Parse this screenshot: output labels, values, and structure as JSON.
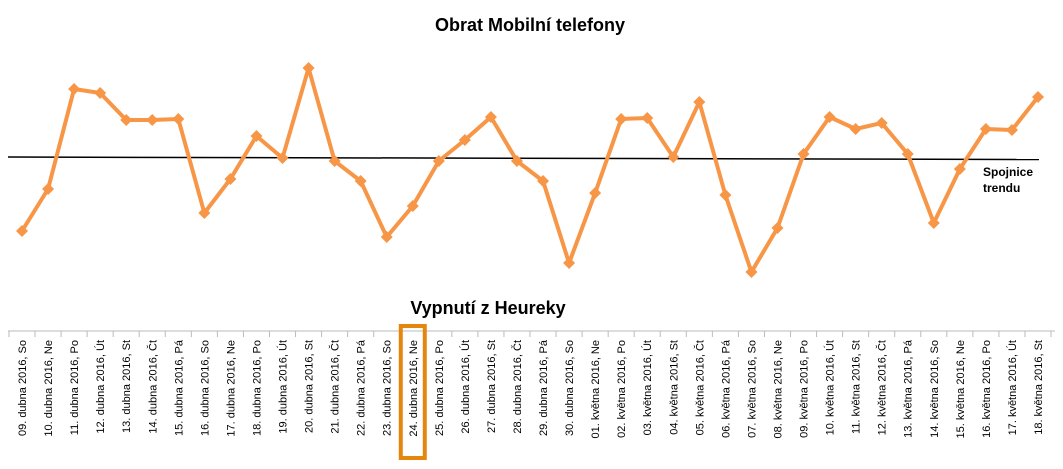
{
  "chart_data": {
    "type": "line",
    "title": "Obrat Mobilní telefony",
    "subtitle": "Vypnutí z Heureky",
    "trendline_label": "Spojnice trendu",
    "categories": [
      "09. dubna 2016, So",
      "10. dubna 2016, Ne",
      "11. dubna 2016, Po",
      "12. dubna 2016, Út",
      "13. dubna 2016, St",
      "14. dubna 2016, Čt",
      "15. dubna 2016, Pá",
      "16. dubna 2016, So",
      "17. dubna 2016, Ne",
      "18. dubna 2016, Po",
      "19. dubna 2016, Út",
      "20. dubna 2016, St",
      "21. dubna 2016, Čt",
      "22. dubna 2016, Pá",
      "23. dubna 2016, So",
      "24. dubna 2016, Ne",
      "25. dubna 2016, Po",
      "26. dubna 2016, Út",
      "27. dubna 2016, St",
      "28. dubna 2016, Čt",
      "29. dubna 2016, Pá",
      "30. dubna 2016, So",
      "01. května 2016, Ne",
      "02. května 2016, Po",
      "03. května 2016, Út",
      "04. května 2016, St",
      "05. května 2016, Čt",
      "06. května 2016, Pá",
      "07. května 2016, So",
      "08. května 2016, Ne",
      "09. května 2016, Po",
      "10. května 2016, Út",
      "11. května 2016, St",
      "12. května 2016, Čt",
      "13. května 2016, Pá",
      "14. května 2016, So",
      "15. května 2016, Ne",
      "16. května 2016, Po",
      "17. května 2016, Út",
      "18. května 2016, St"
    ],
    "series": [
      {
        "name": "Obrat",
        "color": "#f79646",
        "values": [
          69,
          111,
          211,
          207,
          180,
          180,
          181,
          87,
          121,
          164,
          142,
          232,
          139,
          119,
          63,
          94,
          139,
          160,
          183,
          139,
          119,
          37,
          107,
          181,
          182,
          143,
          198,
          105,
          28,
          72,
          146,
          183,
          171,
          177,
          146,
          77,
          131,
          171,
          170,
          203
        ]
      }
    ],
    "ylim": [
      0,
      300
    ],
    "trendline": true,
    "trendline_color": "#000000",
    "highlight_category": 15,
    "highlight_color": "#e5860e"
  }
}
